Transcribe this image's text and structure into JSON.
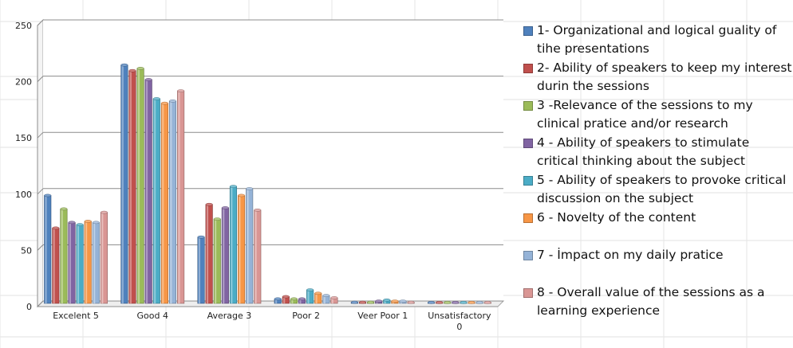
{
  "chart_data": {
    "type": "bar",
    "categories": [
      "Excelent 5",
      "Good 4",
      "Average 3",
      "Poor 2",
      "Veer Poor 1",
      "Unsatisfactory 0"
    ],
    "series": [
      {
        "name": "1- Organizational and logical guality of tihe presentations",
        "color": "#4F81BD",
        "values": [
          96,
          212,
          59,
          4,
          1,
          0
        ]
      },
      {
        "name": "2- Ability of speakers to keep my interest durin the sessions",
        "color": "#C0504D",
        "values": [
          67,
          207,
          88,
          6,
          1,
          0
        ]
      },
      {
        "name": "3 -Relevance of the sessions to my clinical pratice and/or research",
        "color": "#9BBB59",
        "values": [
          84,
          209,
          75,
          4,
          1,
          0
        ]
      },
      {
        "name": "4 - Ability of speakers to stimulate critical thinking about the subject",
        "color": "#8064A2",
        "values": [
          72,
          199,
          85,
          4,
          2,
          0
        ]
      },
      {
        "name": "5 - Ability of speakers to provoke critical discussion on the subject",
        "color": "#4BACC6",
        "values": [
          70,
          182,
          104,
          12,
          3,
          0
        ]
      },
      {
        "name": "6 - Novelty of the content",
        "color": "#F79646",
        "values": [
          73,
          178,
          96,
          9,
          2,
          0
        ]
      },
      {
        "name": "7 - İmpact on my daily pratice",
        "color": "#95B3D7",
        "values": [
          72,
          180,
          102,
          7,
          2,
          0
        ]
      },
      {
        "name": "8 - Overall value of the sessions  as a learning experience",
        "color": "#D99694",
        "values": [
          81,
          189,
          83,
          5,
          1,
          0
        ]
      }
    ],
    "title": "",
    "xlabel": "",
    "ylabel": "",
    "ylim": [
      0,
      250
    ],
    "yticks": [
      "0",
      "50",
      "100",
      "150",
      "200",
      "250"
    ],
    "grid": true,
    "legend_position": "right"
  }
}
